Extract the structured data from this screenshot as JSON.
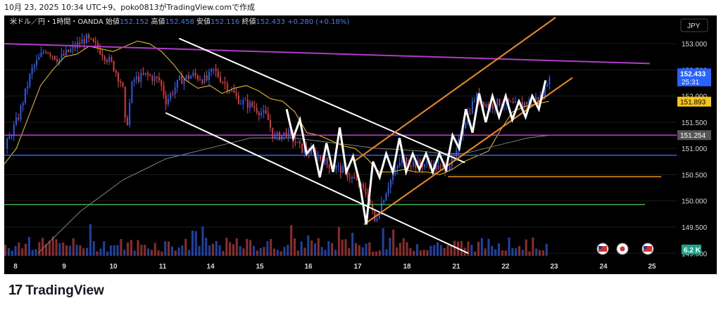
{
  "page": {
    "caption": "10月 23, 2025 10:34 UTC+9、poko0813がTradingView.comで作成",
    "brand": "TradingView",
    "brand_mark": "17"
  },
  "chart_data": {
    "type": "candlestick",
    "symbol_label": "米ドル／円・1時間・OANDA",
    "ohlc_labels": {
      "open": "始値",
      "high": "高値",
      "low": "安値",
      "close": "終値"
    },
    "ohlc_values": {
      "open": "152.152",
      "high": "152.458",
      "low": "152.116",
      "close": "152.433",
      "change": "+0.280 (+0.18%)"
    },
    "currency": "JPY",
    "y_ticks": [
      "153.000",
      "152.500",
      "152.000",
      "151.500",
      "151.000",
      "150.500",
      "150.000",
      "149.500",
      "149.000"
    ],
    "ylim": [
      148.95,
      153.35
    ],
    "x_ticks": [
      "8",
      "9",
      "10",
      "11",
      "14",
      "15",
      "16",
      "17",
      "18",
      "21",
      "22",
      "23",
      "24",
      "25"
    ],
    "price_labels": [
      {
        "text": "152.433",
        "price": 152.433,
        "style": "current",
        "color": "#2962ff"
      },
      {
        "text": "25:31",
        "price": 152.28,
        "style": "timer",
        "color": "#2962ff"
      },
      {
        "text": "151.893",
        "price": 151.893,
        "style": "ma",
        "color": "#f5c518"
      },
      {
        "text": "151.254",
        "price": 151.254,
        "style": "ma-gray",
        "color": "#555555"
      }
    ],
    "volume_label": "6.2 K",
    "horizontal_lines": [
      {
        "price": 151.254,
        "color": "#c23bd4"
      },
      {
        "price": 150.87,
        "color": "#2962ff"
      },
      {
        "price": 150.46,
        "color": "#f08c1a"
      },
      {
        "price": 149.93,
        "color": "#3cb34a"
      }
    ],
    "trend_lines": [
      {
        "name": "purple-resistance",
        "color": "#b03bc8",
        "points": [
          [
            0,
            153.0
          ],
          [
            96,
            152.62
          ]
        ]
      },
      {
        "name": "white-upper",
        "color": "#ffffff",
        "points": [
          [
            26,
            153.1
          ],
          [
            68.5,
            150.73
          ]
        ]
      },
      {
        "name": "white-lower",
        "color": "#ffffff",
        "points": [
          [
            24,
            151.68
          ],
          [
            69,
            149.0
          ]
        ]
      },
      {
        "name": "orange-upper",
        "color": "#f08c1a",
        "points": [
          [
            52,
            150.75
          ],
          [
            82,
            153.5
          ]
        ]
      },
      {
        "name": "orange-lower",
        "color": "#f08c1a",
        "points": [
          [
            53.5,
            149.55
          ],
          [
            84.5,
            152.35
          ]
        ]
      }
    ],
    "zigzag": {
      "color": "#ffffff",
      "prices": [
        151.75,
        151.2,
        151.55,
        150.9,
        151.05,
        150.45,
        151.1,
        150.55,
        151.4,
        150.55,
        150.85,
        150.35,
        149.55,
        150.75,
        150.45,
        150.9,
        150.55,
        151.2,
        150.55,
        150.9,
        150.6,
        150.9,
        150.55,
        150.9,
        150.6,
        151.25,
        151.0,
        151.75,
        151.3,
        152.05,
        151.5,
        152.0,
        151.6,
        152.0,
        151.55,
        151.9,
        151.6,
        152.0,
        151.75,
        152.3
      ],
      "start": 42,
      "end": 80.5
    },
    "moving_averages": [
      {
        "name": "short",
        "color": "#f5c518",
        "prices": [
          150.7,
          151.0,
          151.6,
          152.2,
          152.5,
          152.75,
          152.8,
          152.95,
          152.9,
          152.85,
          152.95,
          153.05,
          153.0,
          152.85,
          152.6,
          152.3,
          152.15,
          152.2,
          152.05,
          152.15,
          152.2,
          152.1,
          151.95,
          151.9,
          151.7,
          151.3,
          151.25,
          151.15,
          151.05,
          151.0,
          150.8,
          150.55,
          150.55,
          150.6,
          150.55,
          150.55,
          150.5,
          150.6,
          150.75,
          150.85,
          150.95,
          151.35,
          151.7,
          151.8,
          151.85,
          151.9
        ]
      },
      {
        "name": "long",
        "color": "#808080",
        "prices": [
          149.0,
          149.4,
          149.8,
          150.1,
          150.4,
          150.6,
          150.8,
          150.9,
          151.0,
          151.1,
          151.2,
          151.2,
          151.2,
          151.15,
          151.1,
          151.05,
          151.0,
          150.98,
          150.95,
          150.9,
          150.9,
          151.0,
          151.1,
          151.2,
          151.25
        ]
      }
    ],
    "events": [
      "flag-us",
      "flag-jp",
      "flag-us"
    ],
    "colors": {
      "up": "#2962ff",
      "down": "#ef3a3a",
      "background": "#000000",
      "axis_text": "#e0e0e0"
    }
  }
}
